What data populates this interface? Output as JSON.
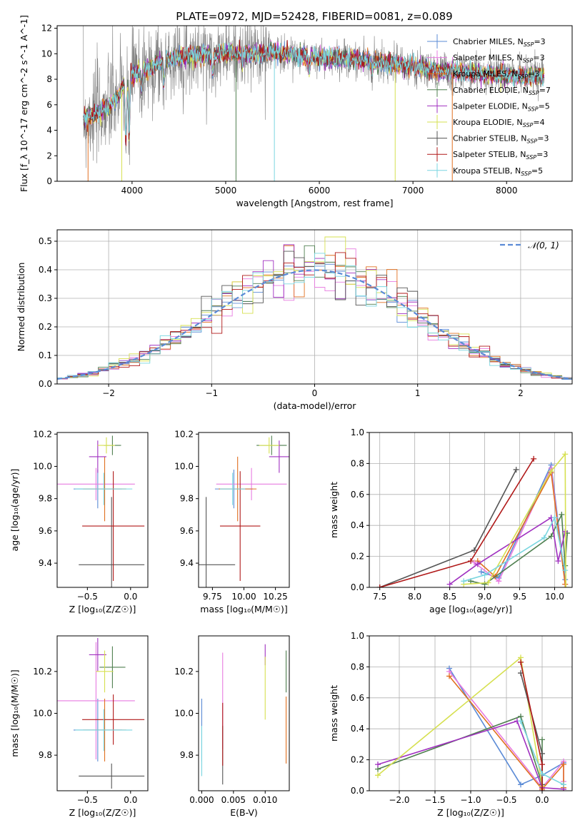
{
  "figure_title": "PLATE=0972, MJD=52428, FIBERID=0081, z=0.089",
  "colors": {
    "Chabrier MILES": "#5b8bd6",
    "Salpeter MILES": "#e77be0",
    "Kroupa MILES": "#e07020",
    "Chabrier ELODIE": "#4f7f4f",
    "Salpeter ELODIE": "#a030c0",
    "Kroupa ELODIE": "#d6e050",
    "Chabrier STELIB": "#555555",
    "Salpeter STELIB": "#b01818",
    "Kroupa STELIB": "#7ad6e0",
    "data": "#808080",
    "normal": "#5b8bd6"
  },
  "chart_data": [
    {
      "id": "spectrum",
      "type": "line",
      "xlabel": "wavelength [Angstrom, rest frame]",
      "ylabel": "Flux [f_λ 10^-17 erg cm^-2 s^-1 A^-1]",
      "xlim": [
        3200,
        8700
      ],
      "ylim": [
        0,
        12.2
      ],
      "xticks": [
        4000,
        5000,
        6000,
        7000,
        8000
      ],
      "yticks": [
        0,
        2,
        4,
        6,
        8,
        10,
        12
      ],
      "legend_position": "right",
      "legend": [
        {
          "base": "Chabrier MILES, N",
          "sub": "SSP",
          "tail": "=3"
        },
        {
          "base": "Salpeter MILES, N",
          "sub": "SSP",
          "tail": "=3"
        },
        {
          "base": "Kroupa MILES, N",
          "sub": "SSP",
          "tail": "=3"
        },
        {
          "base": "Chabrier ELODIE, N",
          "sub": "SSP",
          "tail": "=7"
        },
        {
          "base": "Salpeter ELODIE, N",
          "sub": "SSP",
          "tail": "=5"
        },
        {
          "base": "Kroupa ELODIE, N",
          "sub": "SSP",
          "tail": "=4"
        },
        {
          "base": "Chabrier STELIB, N",
          "sub": "SSP",
          "tail": "=3"
        },
        {
          "base": "Salpeter STELIB, N",
          "sub": "SSP",
          "tail": "=3"
        },
        {
          "base": "Kroupa STELIB, N",
          "sub": "SSP",
          "tail": "=5"
        }
      ],
      "continuum": [
        [
          3500,
          4.9
        ],
        [
          3700,
          5.6
        ],
        [
          3850,
          6.5
        ],
        [
          3950,
          8.3
        ],
        [
          4100,
          8.6
        ],
        [
          4400,
          9.6
        ],
        [
          4700,
          10.0
        ],
        [
          5000,
          10.0
        ],
        [
          5500,
          10.1
        ],
        [
          6000,
          9.7
        ],
        [
          6500,
          9.5
        ],
        [
          6800,
          9.2
        ],
        [
          7200,
          8.7
        ],
        [
          7600,
          8.5
        ],
        [
          8000,
          8.3
        ],
        [
          8400,
          8.2
        ]
      ],
      "absorption_dips": [
        [
          3934,
          3.2
        ],
        [
          3968,
          3.4
        ],
        [
          4102,
          7.2
        ],
        [
          4340,
          7.6
        ],
        [
          4861,
          8.4
        ],
        [
          5175,
          9.0
        ],
        [
          5890,
          8.8
        ],
        [
          6563,
          8.5
        ]
      ],
      "spikes": [
        [
          5110,
          0
        ],
        [
          5520,
          0
        ],
        [
          6810,
          0
        ],
        [
          7420,
          0
        ],
        [
          3530,
          0
        ],
        [
          3890,
          0
        ]
      ]
    },
    {
      "id": "residuals",
      "type": "histogram",
      "xlabel": "(data-model)/error",
      "ylabel": "Normed distribution",
      "xlim": [
        -2.5,
        2.5
      ],
      "ylim": [
        0,
        0.54
      ],
      "xticks": [
        -2,
        -1,
        0,
        1,
        2
      ],
      "yticks": [
        0.0,
        0.1,
        0.2,
        0.3,
        0.4,
        0.5
      ],
      "legend_label": "𝒩(0, 1)",
      "bin_width": 0.1,
      "grid": true
    },
    {
      "id": "age_vs_Z",
      "type": "errorbar",
      "xlabel": "Z [log₁₀(Z/Z☉)]",
      "ylabel": "age  [log₁₀(age/yr)]",
      "xlim": [
        -0.85,
        0.2
      ],
      "ylim": [
        9.25,
        10.21
      ],
      "xticks": [
        -0.5,
        0.0
      ],
      "yticks": [
        9.4,
        9.6,
        9.8,
        10.0,
        10.2
      ],
      "points": [
        {
          "model": "Chabrier MILES",
          "x": -0.38,
          "xerr": 0.28,
          "y": 9.86,
          "yerr": 0.12
        },
        {
          "model": "Salpeter MILES",
          "x": -0.4,
          "xerr": 0.45,
          "y": 9.89,
          "yerr": 0.1
        },
        {
          "model": "Kroupa MILES",
          "x": -0.3,
          "xerr": 0.25,
          "y": 9.86,
          "yerr": 0.2
        },
        {
          "model": "Chabrier ELODIE",
          "x": -0.21,
          "xerr": 0.1,
          "y": 10.13,
          "yerr": 0.06
        },
        {
          "model": "Salpeter ELODIE",
          "x": -0.38,
          "xerr": 0.1,
          "y": 10.06,
          "yerr": 0.1
        },
        {
          "model": "Kroupa ELODIE",
          "x": -0.28,
          "xerr": 0.1,
          "y": 10.13,
          "yerr": 0.05
        },
        {
          "model": "Chabrier STELIB",
          "x": -0.22,
          "xerr": 0.38,
          "y": 9.39,
          "yerr": 0.42
        },
        {
          "model": "Salpeter STELIB",
          "x": -0.2,
          "xerr": 0.36,
          "y": 9.63,
          "yerr": 0.34
        },
        {
          "model": "Kroupa STELIB",
          "x": -0.31,
          "xerr": 0.33,
          "y": 9.86,
          "yerr": 0.1
        }
      ]
    },
    {
      "id": "age_vs_mass",
      "type": "errorbar",
      "xlabel": "mass [log₁₀(M/M☉)]",
      "ylabel": "",
      "xlim": [
        9.64,
        10.36
      ],
      "ylim": [
        9.25,
        10.21
      ],
      "xticks": [
        9.75,
        10.0,
        10.25
      ],
      "yticks": [
        9.4,
        9.6,
        9.8,
        10.0,
        10.2
      ],
      "points": [
        {
          "model": "Chabrier MILES",
          "x": 9.92,
          "xerr": 0.15,
          "y": 9.86,
          "yerr": 0.12
        },
        {
          "model": "Salpeter MILES",
          "x": 10.06,
          "xerr": 0.28,
          "y": 9.89,
          "yerr": 0.1
        },
        {
          "model": "Kroupa MILES",
          "x": 9.95,
          "xerr": 0.15,
          "y": 9.86,
          "yerr": 0.2
        },
        {
          "model": "Chabrier ELODIE",
          "x": 10.22,
          "xerr": 0.12,
          "y": 10.13,
          "yerr": 0.06
        },
        {
          "model": "Salpeter ELODIE",
          "x": 10.28,
          "xerr": 0.08,
          "y": 10.06,
          "yerr": 0.1
        },
        {
          "model": "Kroupa ELODIE",
          "x": 10.2,
          "xerr": 0.08,
          "y": 10.13,
          "yerr": 0.05
        },
        {
          "model": "Chabrier STELIB",
          "x": 9.7,
          "xerr": 0.23,
          "y": 9.39,
          "yerr": 0.42
        },
        {
          "model": "Salpeter STELIB",
          "x": 9.97,
          "xerr": 0.16,
          "y": 9.63,
          "yerr": 0.34
        },
        {
          "model": "Kroupa STELIB",
          "x": 9.91,
          "xerr": 0.1,
          "y": 9.86,
          "yerr": 0.1
        }
      ]
    },
    {
      "id": "weight_vs_age",
      "type": "line",
      "xlabel": "age  [log₁₀(age/yr)]",
      "ylabel": "mass weight",
      "xlim": [
        7.35,
        10.25
      ],
      "ylim": [
        0,
        1.0
      ],
      "xticks": [
        7.5,
        8.0,
        8.5,
        9.0,
        9.5,
        10.0
      ],
      "yticks": [
        0.0,
        0.2,
        0.4,
        0.6,
        0.8,
        1.0
      ],
      "grid": true,
      "series": [
        {
          "model": "Chabrier MILES",
          "points": [
            [
              8.95,
              0.1
            ],
            [
              9.2,
              0.06
            ],
            [
              9.95,
              0.79
            ],
            [
              10.15,
              0.05
            ]
          ]
        },
        {
          "model": "Salpeter MILES",
          "points": [
            [
              8.85,
              0.16
            ],
            [
              9.2,
              0.04
            ],
            [
              9.95,
              0.77
            ],
            [
              10.15,
              0.02
            ]
          ]
        },
        {
          "model": "Kroupa MILES",
          "points": [
            [
              8.9,
              0.17
            ],
            [
              9.15,
              0.07
            ],
            [
              9.95,
              0.74
            ],
            [
              10.15,
              0.02
            ]
          ]
        },
        {
          "model": "Chabrier ELODIE",
          "points": [
            [
              8.8,
              0.04
            ],
            [
              9.0,
              0.02
            ],
            [
              9.95,
              0.33
            ],
            [
              10.1,
              0.47
            ],
            [
              10.15,
              0.14
            ],
            [
              10.18,
              0.35
            ]
          ]
        },
        {
          "model": "Salpeter ELODIE",
          "points": [
            [
              8.5,
              0.02
            ],
            [
              8.9,
              0.15
            ],
            [
              9.95,
              0.45
            ],
            [
              10.05,
              0.17
            ],
            [
              10.15,
              0.36
            ]
          ]
        },
        {
          "model": "Kroupa ELODIE",
          "points": [
            [
              8.7,
              0.02
            ],
            [
              9.05,
              0.03
            ],
            [
              9.95,
              0.75
            ],
            [
              10.15,
              0.86
            ],
            [
              10.16,
              0.0
            ]
          ]
        },
        {
          "model": "Chabrier STELIB",
          "points": [
            [
              7.5,
              0.0
            ],
            [
              8.85,
              0.24
            ],
            [
              9.45,
              0.76
            ]
          ]
        },
        {
          "model": "Salpeter STELIB",
          "points": [
            [
              7.5,
              0.0
            ],
            [
              8.8,
              0.17
            ],
            [
              9.7,
              0.83
            ]
          ]
        },
        {
          "model": "Kroupa STELIB",
          "points": [
            [
              8.7,
              0.04
            ],
            [
              9.0,
              0.08
            ],
            [
              9.85,
              0.32
            ],
            [
              10.0,
              0.45
            ],
            [
              10.15,
              0.11
            ]
          ]
        }
      ]
    },
    {
      "id": "mass_vs_Z",
      "type": "errorbar",
      "xlabel": "Z [log₁₀(Z/Z☉)]",
      "ylabel": "mass [log₁₀(M/M☉)]",
      "xlim": [
        -0.85,
        0.2
      ],
      "ylim": [
        9.63,
        10.37
      ],
      "xticks": [
        -0.5,
        0.0
      ],
      "yticks": [
        9.8,
        10.0,
        10.2
      ],
      "points": [
        {
          "model": "Chabrier MILES",
          "x": -0.38,
          "xerr": 0.28,
          "y": 9.92,
          "yerr": 0.15
        },
        {
          "model": "Salpeter MILES",
          "x": -0.4,
          "xerr": 0.45,
          "y": 10.06,
          "yerr": 0.28
        },
        {
          "model": "Kroupa MILES",
          "x": -0.3,
          "xerr": 0.25,
          "y": 9.92,
          "yerr": 0.15
        },
        {
          "model": "Chabrier ELODIE",
          "x": -0.21,
          "xerr": 0.15,
          "y": 10.22,
          "yerr": 0.1
        },
        {
          "model": "Salpeter ELODIE",
          "x": -0.38,
          "xerr": 0.1,
          "y": 10.28,
          "yerr": 0.08
        },
        {
          "model": "Kroupa ELODIE",
          "x": -0.3,
          "xerr": 0.1,
          "y": 10.2,
          "yerr": 0.1
        },
        {
          "model": "Chabrier STELIB",
          "x": -0.22,
          "xerr": 0.38,
          "y": 9.7,
          "yerr": 0.06
        },
        {
          "model": "Salpeter STELIB",
          "x": -0.2,
          "xerr": 0.36,
          "y": 9.97,
          "yerr": 0.12
        },
        {
          "model": "Kroupa STELIB",
          "x": -0.31,
          "xerr": 0.33,
          "y": 9.92,
          "yerr": 0.1
        }
      ]
    },
    {
      "id": "mass_vs_EBV",
      "type": "errorbar",
      "xlabel": "E(B-V)",
      "ylabel": "",
      "xlim": [
        -0.0005,
        0.0138
      ],
      "ylim": [
        9.63,
        10.37
      ],
      "xticks": [
        0.0,
        0.005,
        0.01
      ],
      "yticks": [
        9.8,
        10.0,
        10.2
      ],
      "points": [
        {
          "model": "Chabrier MILES",
          "x": 0.0,
          "xerr": 0,
          "y": 9.92,
          "yerr": 0.15
        },
        {
          "model": "Salpeter MILES",
          "x": 0.0033,
          "xerr": 0,
          "y": 10.06,
          "yerr": 0.23
        },
        {
          "model": "Kroupa MILES",
          "x": 0.0133,
          "xerr": 0,
          "y": 9.92,
          "yerr": 0.16
        },
        {
          "model": "Chabrier ELODIE",
          "x": 0.0133,
          "xerr": 0,
          "y": 10.2,
          "yerr": 0.1
        },
        {
          "model": "Salpeter ELODIE",
          "x": 0.01,
          "xerr": 0,
          "y": 10.28,
          "yerr": 0.05
        },
        {
          "model": "Kroupa ELODIE",
          "x": 0.01,
          "xerr": 0,
          "y": 10.12,
          "yerr": 0.15
        },
        {
          "model": "Chabrier STELIB",
          "x": 0.0033,
          "xerr": 0,
          "y": 9.8,
          "yerr": 0.14
        },
        {
          "model": "Salpeter STELIB",
          "x": 0.0033,
          "xerr": 0,
          "y": 9.9,
          "yerr": 0.15
        },
        {
          "model": "Kroupa STELIB",
          "x": 0.0,
          "xerr": 0,
          "y": 9.82,
          "yerr": 0.12
        }
      ]
    },
    {
      "id": "weight_vs_Z",
      "type": "line",
      "xlabel": "Z [log₁₀(Z/Z☉)]",
      "ylabel": "mass weight",
      "xlim": [
        -2.42,
        0.42
      ],
      "ylim": [
        0,
        1.0
      ],
      "xticks": [
        -2.0,
        -1.5,
        -1.0,
        -0.5,
        0.0
      ],
      "yticks": [
        0.0,
        0.2,
        0.4,
        0.6,
        0.8,
        1.0
      ],
      "grid": true,
      "series": [
        {
          "model": "Chabrier MILES",
          "points": [
            [
              -1.3,
              0.79
            ],
            [
              -0.3,
              0.04
            ],
            [
              0.0,
              0.1
            ],
            [
              0.3,
              0.18
            ]
          ]
        },
        {
          "model": "Salpeter MILES",
          "points": [
            [
              -1.3,
              0.77
            ],
            [
              0.0,
              0.02
            ],
            [
              0.3,
              0.19
            ],
            [
              0.3,
              0.06
            ]
          ]
        },
        {
          "model": "Kroupa MILES",
          "points": [
            [
              -1.3,
              0.74
            ],
            [
              0.0,
              0.01
            ],
            [
              0.3,
              0.17
            ],
            [
              0.3,
              0.02
            ]
          ]
        },
        {
          "model": "Chabrier ELODIE",
          "points": [
            [
              -2.3,
              0.14
            ],
            [
              -0.3,
              0.48
            ],
            [
              0.0,
              0.04
            ],
            [
              0.0,
              0.33
            ]
          ]
        },
        {
          "model": "Salpeter ELODIE",
          "points": [
            [
              -2.3,
              0.17
            ],
            [
              -0.35,
              0.45
            ],
            [
              0.0,
              0.02
            ],
            [
              0.3,
              0.01
            ]
          ]
        },
        {
          "model": "Kroupa ELODIE",
          "points": [
            [
              -2.3,
              0.1
            ],
            [
              -0.3,
              0.86
            ],
            [
              0.0,
              0.03
            ]
          ]
        },
        {
          "model": "Chabrier STELIB",
          "points": [
            [
              -0.3,
              0.76
            ],
            [
              0.0,
              0.24
            ],
            [
              0.0,
              0.0
            ]
          ]
        },
        {
          "model": "Salpeter STELIB",
          "points": [
            [
              -0.3,
              0.83
            ],
            [
              0.0,
              0.17
            ],
            [
              0.0,
              0.0
            ]
          ]
        },
        {
          "model": "Kroupa STELIB",
          "points": [
            [
              -0.3,
              0.45
            ],
            [
              0.0,
              0.11
            ],
            [
              0.3,
              0.04
            ]
          ]
        }
      ]
    }
  ]
}
